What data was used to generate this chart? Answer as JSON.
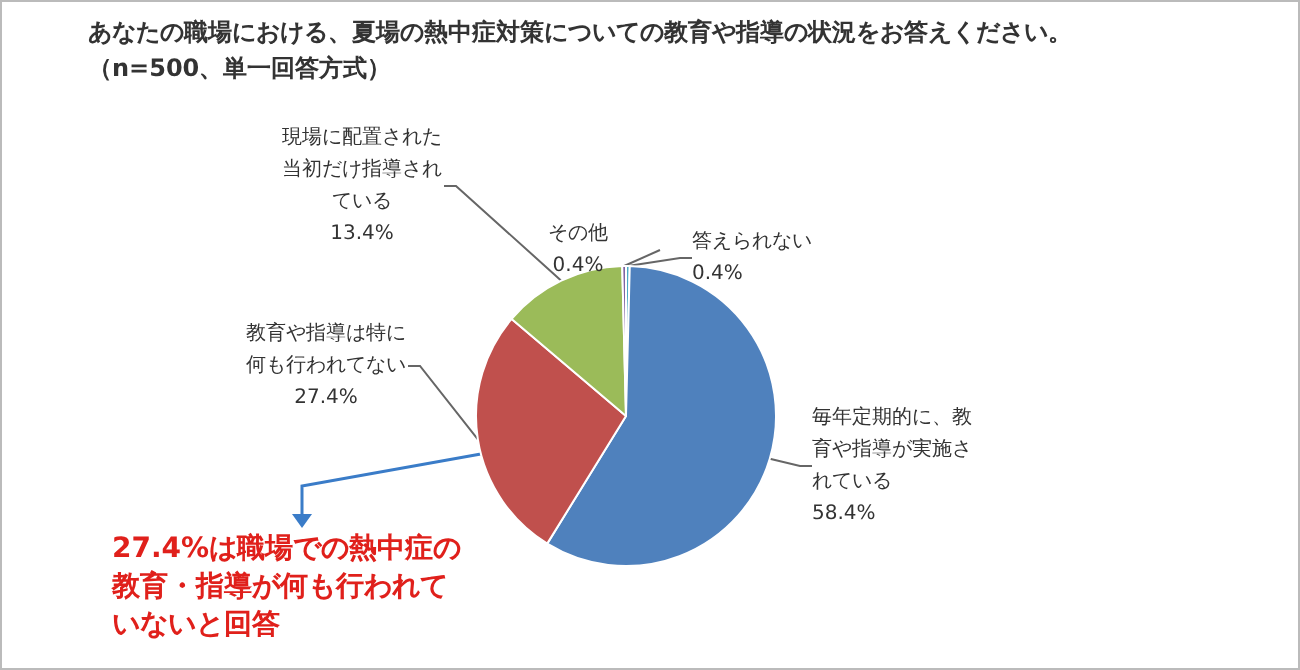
{
  "chart_data": {
    "type": "pie",
    "title": "あなたの職場における、夏場の熱中症対策についての教育や指導の状況をお答えください。",
    "subtitle": "（n=500、単一回答方式）",
    "categories": [
      "答えられない",
      "毎年定期的に、教育や指導が実施されている",
      "教育や指導は特に何も行われてない",
      "現場に配置された当初だけ指導されている",
      "その他"
    ],
    "values": [
      0.4,
      58.4,
      27.4,
      13.4,
      0.4
    ],
    "colors": [
      "#4bacc6",
      "#4f81bd",
      "#c0504d",
      "#9bbb59",
      "#8064a2"
    ],
    "value_labels": [
      "0.4%",
      "58.4%",
      "27.4%",
      "13.4%",
      "0.4%"
    ],
    "legend": false,
    "annotations": [
      "27.4%は職場での熱中症の教育・指導が何も行われていないと回答"
    ]
  }
}
